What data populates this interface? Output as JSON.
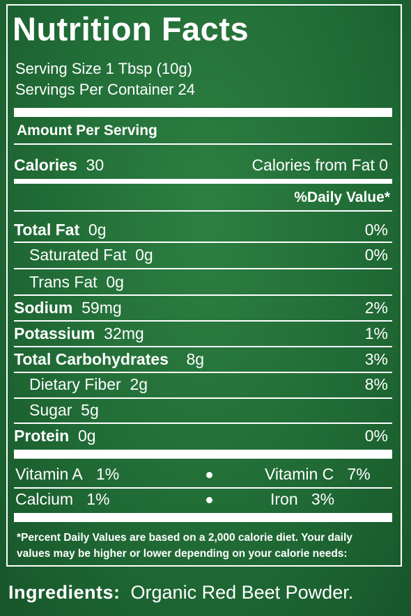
{
  "title": "Nutrition Facts",
  "serving_size": "Serving Size 1 Tbsp (10g)",
  "servings_per_container": "Servings Per Container 24",
  "amount_per_serving": "Amount Per Serving",
  "calories": {
    "label": "Calories",
    "value": "30",
    "from_fat": "Calories from Fat  0"
  },
  "daily_value_header": "%Daily Value*",
  "nutrients": [
    {
      "label": "Total Fat",
      "amount": "0g",
      "pct": "0%"
    },
    {
      "label": "Saturated Fat",
      "amount": "0g",
      "pct": "0%"
    },
    {
      "label": "Trans Fat",
      "amount": "0g",
      "pct": ""
    },
    {
      "label": "Sodium",
      "amount": "59mg",
      "pct": "2%"
    },
    {
      "label": "Potassium",
      "amount": "32mg",
      "pct": "1%"
    },
    {
      "label": "Total Carbohydrates",
      "amount": "8g",
      "pct": "3%"
    },
    {
      "label": "Dietary Fiber",
      "amount": "2g",
      "pct": "8%"
    },
    {
      "label": "Sugar",
      "amount": "5g",
      "pct": ""
    },
    {
      "label": "Protein",
      "amount": "0g",
      "pct": "0%"
    }
  ],
  "vitamins": [
    {
      "label": "Vitamin A",
      "pct": "1%"
    },
    {
      "label": "Vitamin C",
      "pct": "7%"
    },
    {
      "label": "Calcium",
      "pct": "1%"
    },
    {
      "label": "Iron",
      "pct": "3%"
    }
  ],
  "footnote_1": "*Percent Daily Values are based on a 2,000 calorie diet. Your daily",
  "footnote_2": "values may be higher or lower depending on your calorie needs:",
  "ingredients": {
    "label": "Ingredients:",
    "text": "Organic Red Beet Powder."
  }
}
